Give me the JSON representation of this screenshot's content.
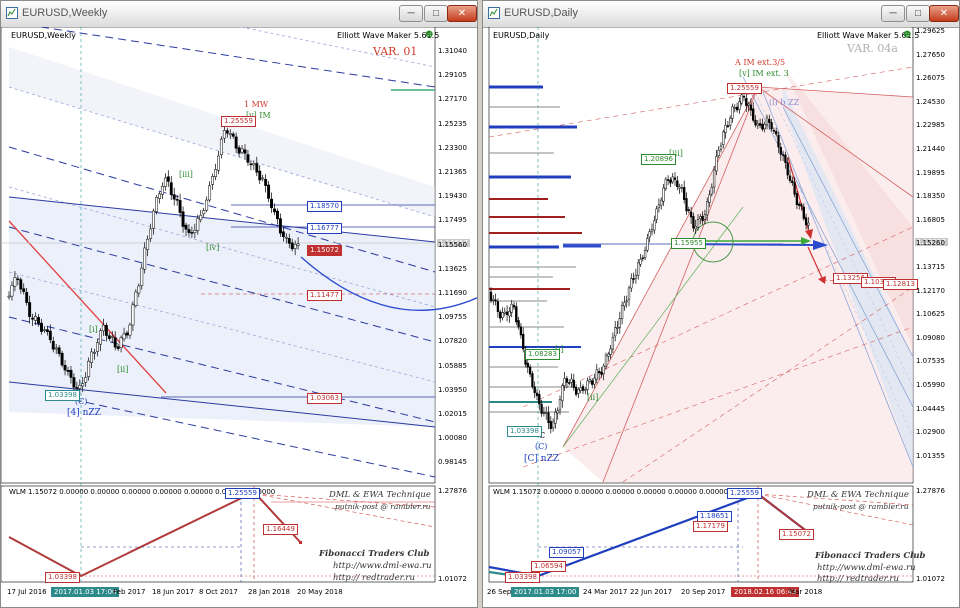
{
  "colors": {
    "up": "#000000",
    "accent_red": "#d23a2a",
    "accent_blue": "#1f3fbf",
    "wave_green": "#2d8a2d"
  },
  "left": {
    "title": "EURUSD,Weekly",
    "header": "EURUSD,Weekly",
    "ea": "Elliott Wave Maker 5.61.5",
    "variant": "VAR. 01",
    "wave_labels": {
      "mw": "1 MW",
      "im": "[v] IM",
      "w3": "[iii]",
      "w4": "[iv]",
      "wi": "[i]",
      "wii": "[ii]",
      "c": "(C)",
      "nzz": "[4] nZZ"
    },
    "price_boxes": {
      "high": "1.25559",
      "p1": "1.18570",
      "p2": "1.16777",
      "p3": "1.15072",
      "p4": "1.11477",
      "low": "1.03398",
      "p5": "1.03063",
      "current": "1.15557"
    },
    "price_axis": [
      "1.31040",
      "1.29105",
      "1.27170",
      "1.25235",
      "1.23300",
      "1.21365",
      "1.19430",
      "1.17495",
      "1.15560",
      "1.13625",
      "1.11690",
      "1.09755",
      "1.07820",
      "1.05885",
      "1.03950",
      "1.02015",
      "1.00080",
      "0.98145"
    ],
    "dates": [
      "17 Jul 2016",
      "2017.01.03 17:00",
      "Feb 2017",
      "18 Jun 2017",
      "8 Oct 2017",
      "28 Jan 2018",
      "20 May 2018"
    ],
    "sub": {
      "header": "WLM 1.15072 0.00000 0.00000 0.00000 0.00000 0.00000 0.00000 0.00000",
      "top": "1.25559",
      "mid": "1.16449",
      "low": "1.03398",
      "axis": [
        "1.27876",
        "1.01072"
      ],
      "sig1": "DML & EWA Technique",
      "sig2": "putnik-post @ rambler.ru",
      "club": "Fibonacci   Traders   Club",
      "url1": "http://www.dml-ewa.ru",
      "url2": "http:// redtrader.ru"
    }
  },
  "right": {
    "title": "EURUSD,Daily",
    "header": "EURUSD,Daily",
    "ea": "Elliott Wave Maker 5.61.5",
    "variant": "VAR. 04a",
    "wave_labels": {
      "aim": "A IM ext.3/5",
      "vim": "[v] IM ext. 3",
      "ib": "(i) b ZZ",
      "iii": "[iii]",
      "ii": "[ii]",
      "i": "[i]",
      "c": "C",
      "cc": "(C)",
      "nzz": "[C] nZZ"
    },
    "price_boxes": {
      "high": "1.25559",
      "p1": "1.20896",
      "p2": "1.15955",
      "low": "1.03398",
      "lb": "1.08283",
      "r1": "1.13256",
      "r2": "1.10391",
      "r3": "1.12813",
      "current": "1.15557"
    },
    "price_axis": [
      "1.29625",
      "1.27650",
      "1.26075",
      "1.24530",
      "1.22985",
      "1.21440",
      "1.19895",
      "1.18350",
      "1.16805",
      "1.15260",
      "1.13715",
      "1.12170",
      "1.10625",
      "1.09080",
      "1.07535",
      "1.05990",
      "1.04445",
      "1.02900",
      "1.01355"
    ],
    "dates": [
      "26 Sep 2016",
      "2017.01.03 17:00",
      "24 Mar 2017",
      "22 Jun 2017",
      "20 Sep 2017",
      "2018.02.16 06:43",
      "Mar 2018"
    ],
    "sub": {
      "header": "WLM 1.15072 0.00000 0.00000 0.00000 0.00000 0.00000 0.00000 0.00000",
      "top": "1.25559",
      "b1": "1.18651",
      "b2": "1.17179",
      "b3": "1.09057",
      "b4": "1.06594",
      "b5": "1.03398",
      "b6": "1.15072",
      "axis": [
        "1.27876",
        "1.01072"
      ],
      "sig1": "DML & EWA Technique",
      "sig2": "putnik-post @ rambler.ru",
      "club": "Fibonacci   Traders   Club",
      "url1": "http://www.dml-ewa.ru",
      "url2": "http:// redtrader.ru"
    }
  }
}
